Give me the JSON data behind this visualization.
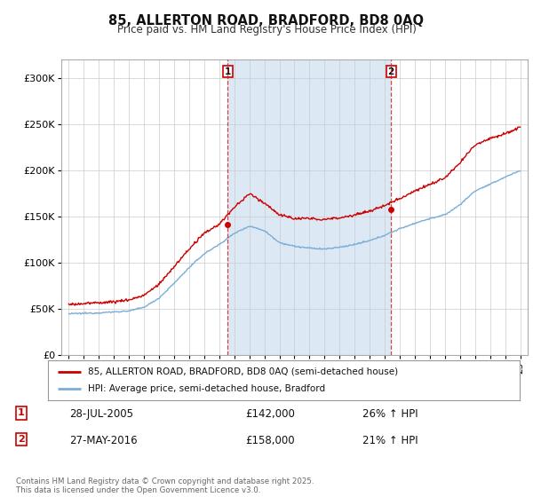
{
  "title": "85, ALLERTON ROAD, BRADFORD, BD8 0AQ",
  "subtitle": "Price paid vs. HM Land Registry's House Price Index (HPI)",
  "background_color": "#ffffff",
  "plot_bg_color": "#ffffff",
  "shade_color": "#dce9f5",
  "ylim": [
    0,
    320000
  ],
  "yticks": [
    0,
    50000,
    100000,
    150000,
    200000,
    250000,
    300000
  ],
  "ytick_labels": [
    "£0",
    "£50K",
    "£100K",
    "£150K",
    "£200K",
    "£250K",
    "£300K"
  ],
  "legend_entries": [
    "85, ALLERTON ROAD, BRADFORD, BD8 0AQ (semi-detached house)",
    "HPI: Average price, semi-detached house, Bradford"
  ],
  "legend_colors": [
    "#cc0000",
    "#7aaed6"
  ],
  "annotation1_date": "28-JUL-2005",
  "annotation1_price": "£142,000",
  "annotation1_hpi": "26% ↑ HPI",
  "annotation2_date": "27-MAY-2016",
  "annotation2_price": "£158,000",
  "annotation2_hpi": "21% ↑ HPI",
  "copyright_text": "Contains HM Land Registry data © Crown copyright and database right 2025.\nThis data is licensed under the Open Government Licence v3.0.",
  "vline1_x": 2005.57,
  "vline2_x": 2016.41,
  "sale1_x": 2005.57,
  "sale1_y": 142000,
  "sale2_x": 2016.41,
  "sale2_y": 158000,
  "xmin": 1994.5,
  "xmax": 2025.5
}
